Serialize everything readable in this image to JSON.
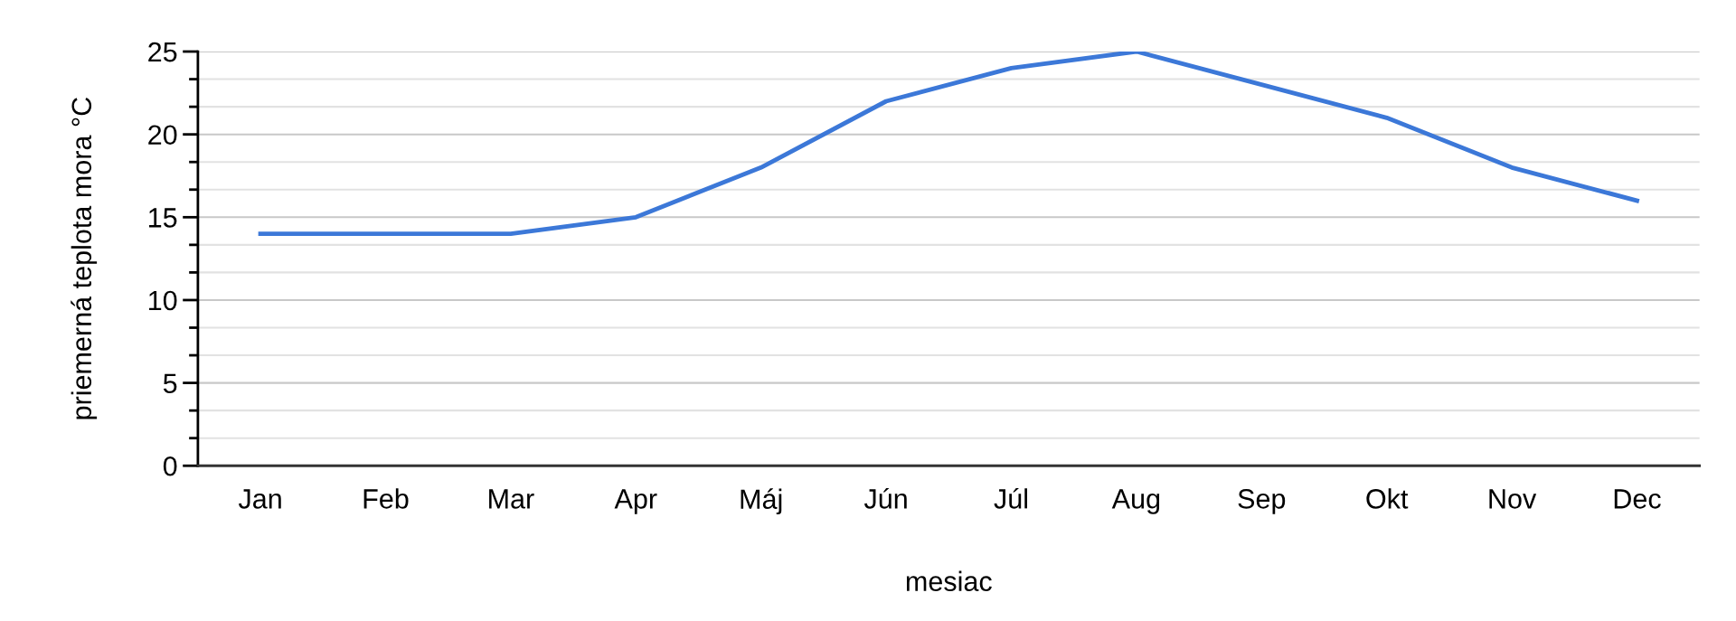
{
  "chart_data": {
    "type": "line",
    "xlabel": "mesiac",
    "ylabel": "priemerná teplota mora °C",
    "categories": [
      "Jan",
      "Feb",
      "Mar",
      "Apr",
      "Máj",
      "Jún",
      "Júl",
      "Aug",
      "Sep",
      "Okt",
      "Nov",
      "Dec"
    ],
    "series": [
      {
        "color": "#3c78d8",
        "values": [
          14,
          14,
          14,
          15,
          18,
          22,
          24,
          25,
          23,
          21,
          18,
          16
        ]
      }
    ],
    "ylim": [
      0,
      25
    ],
    "yticks": [
      0,
      {
        "value": 1.667,
        "label": null
      },
      {
        "value": 3.333,
        "label": null
      },
      5,
      {
        "value": 6.667,
        "label": null
      },
      {
        "value": 8.333,
        "label": null
      },
      10,
      {
        "value": 11.667,
        "label": null
      },
      {
        "value": 13.333,
        "label": null
      },
      15,
      {
        "value": 16.667,
        "label": null
      },
      {
        "value": 18.333,
        "label": null
      },
      20,
      {
        "value": 21.667,
        "label": null
      },
      {
        "value": 23.333,
        "label": null
      },
      25
    ],
    "grid": "y",
    "marker": "none",
    "line_style": "solid"
  }
}
